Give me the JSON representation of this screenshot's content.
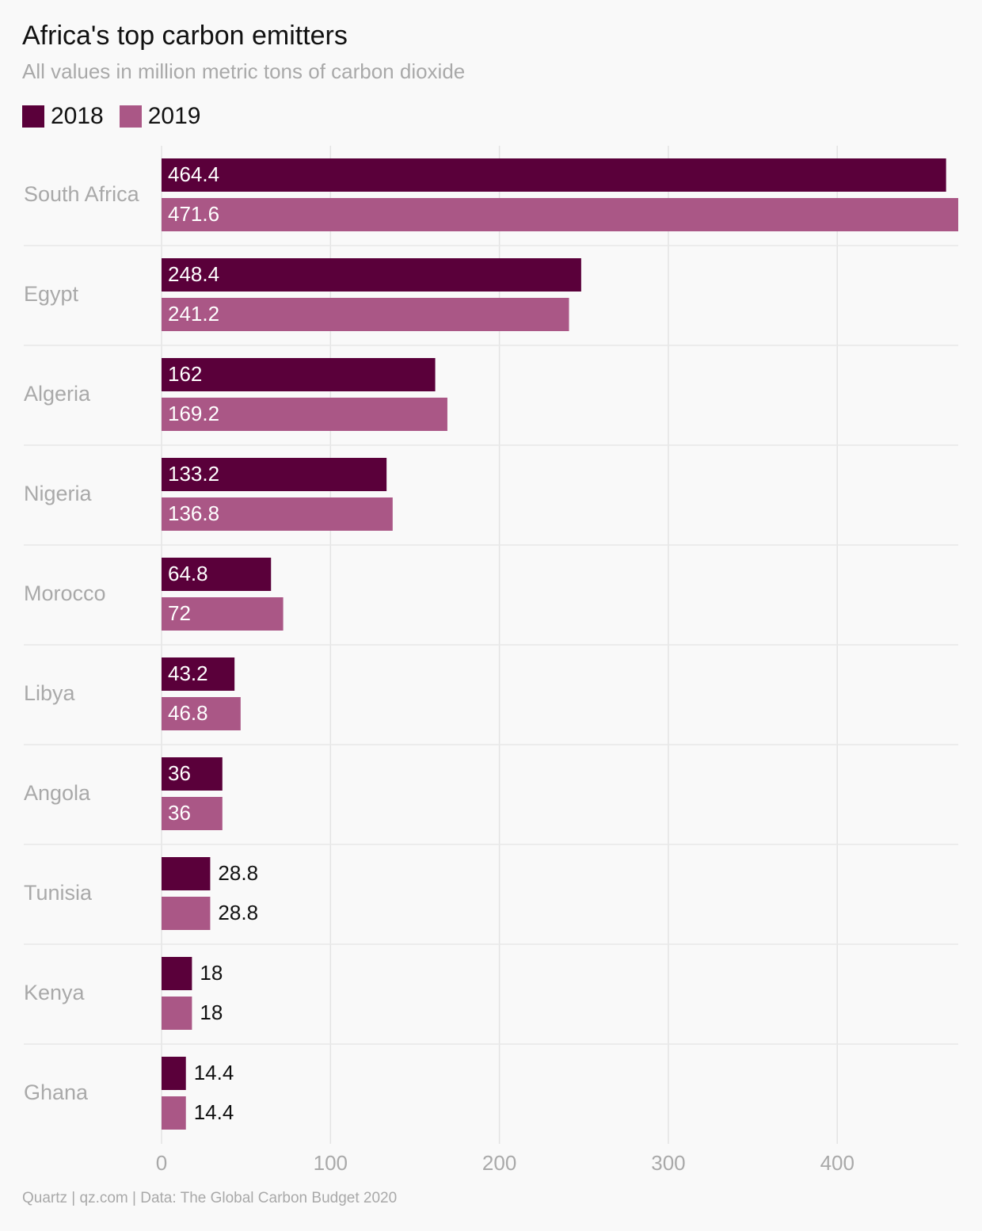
{
  "chart_data": {
    "type": "bar",
    "orientation": "horizontal",
    "title": "Africa's top carbon emitters",
    "subtitle": "All values in million metric tons of carbon dioxide",
    "categories": [
      "South Africa",
      "Egypt",
      "Algeria",
      "Nigeria",
      "Morocco",
      "Libya",
      "Angola",
      "Tunisia",
      "Kenya",
      "Ghana"
    ],
    "series": [
      {
        "name": "2018",
        "color": "#5a003a",
        "values": [
          464.4,
          248.4,
          162,
          133.2,
          64.8,
          43.2,
          36,
          28.8,
          18,
          14.4
        ],
        "labels": [
          "464.4",
          "248.4",
          "162",
          "133.2",
          "64.8",
          "43.2",
          "36",
          "28.8",
          "18",
          "14.4"
        ]
      },
      {
        "name": "2019",
        "color": "#aa5786",
        "values": [
          471.6,
          241.2,
          169.2,
          136.8,
          72,
          46.8,
          36,
          28.8,
          18,
          14.4
        ],
        "labels": [
          "471.6",
          "241.2",
          "169.2",
          "136.8",
          "72",
          "46.8",
          "36",
          "28.8",
          "18",
          "14.4"
        ]
      }
    ],
    "xlim": [
      0,
      471.6
    ],
    "xticks": [
      0,
      100,
      200,
      300,
      400
    ],
    "xtick_labels": [
      "0",
      "100",
      "200",
      "300",
      "400"
    ],
    "grid": true,
    "legend_position": "top-left",
    "source": "Quartz | qz.com | Data: The Global Carbon Budget 2020"
  }
}
